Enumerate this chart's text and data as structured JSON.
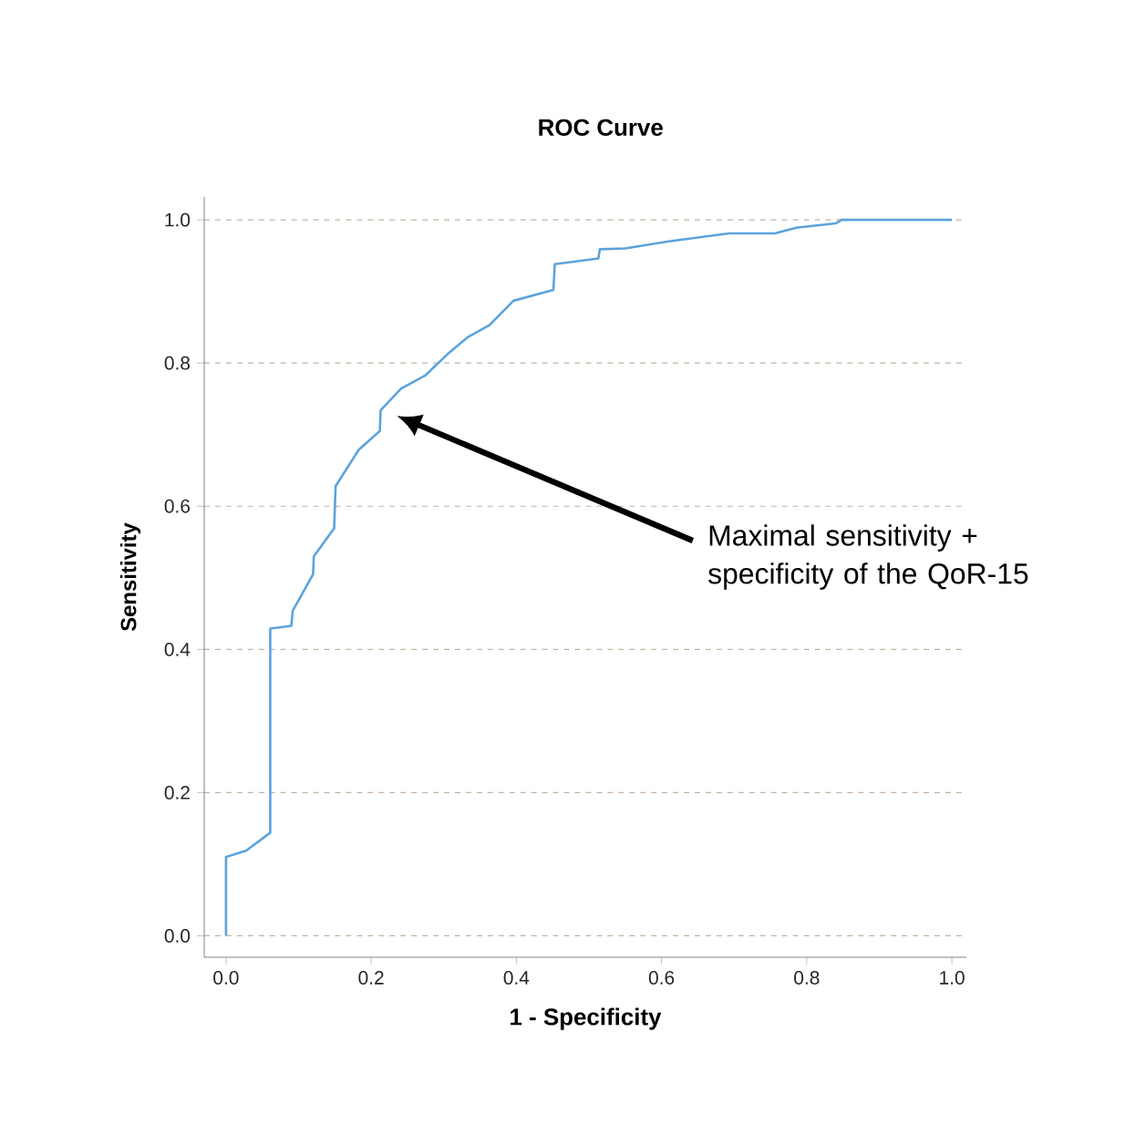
{
  "chart_data": {
    "type": "line",
    "title": "ROC Curve",
    "xlabel": "1 - Specificity",
    "ylabel": "Sensitivity",
    "x": [
      0,
      0,
      0.028,
      0.061,
      0.061,
      0.09,
      0.092,
      0.12,
      0.121,
      0.149,
      0.151,
      0.183,
      0.212,
      0.213,
      0.241,
      0.275,
      0.308,
      0.333,
      0.363,
      0.396,
      0.451,
      0.453,
      0.513,
      0.515,
      0.55,
      0.61,
      0.693,
      0.756,
      0.786,
      0.84,
      0.848,
      1.0
    ],
    "series": [
      {
        "color": "#5ba3dc",
        "values": [
          0,
          0.11,
          0.119,
          0.144,
          0.429,
          0.433,
          0.454,
          0.505,
          0.53,
          0.569,
          0.628,
          0.679,
          0.705,
          0.734,
          0.764,
          0.783,
          0.815,
          0.836,
          0.853,
          0.887,
          0.902,
          0.938,
          0.946,
          0.959,
          0.96,
          0.97,
          0.981,
          0.981,
          0.989,
          0.995,
          1.0,
          1.0
        ]
      }
    ],
    "xlim": [
      -0.03,
      1.02
    ],
    "ylim": [
      -0.03,
      1.032
    ],
    "xticks": [
      {
        "value": 0,
        "label": "0.0"
      },
      {
        "value": 0.2,
        "label": "0.2"
      },
      {
        "value": 0.4,
        "label": "0.4"
      },
      {
        "value": 0.6,
        "label": "0.6"
      },
      {
        "value": 0.8,
        "label": "0.8"
      },
      {
        "value": 1,
        "label": "1.0"
      }
    ],
    "yticks": [
      {
        "value": 0,
        "label": "0.0"
      },
      {
        "value": 0.2,
        "label": "0.2"
      },
      {
        "value": 0.4,
        "label": "0.4"
      },
      {
        "value": 0.6,
        "label": "0.6"
      },
      {
        "value": 0.8,
        "label": "0.8"
      },
      {
        "value": 1,
        "label": "1.0"
      }
    ],
    "grid": "y",
    "marker": "none",
    "line_style": "solid",
    "annotations": [
      "Maximal sensitivity + specificity of the QoR-15"
    ]
  }
}
